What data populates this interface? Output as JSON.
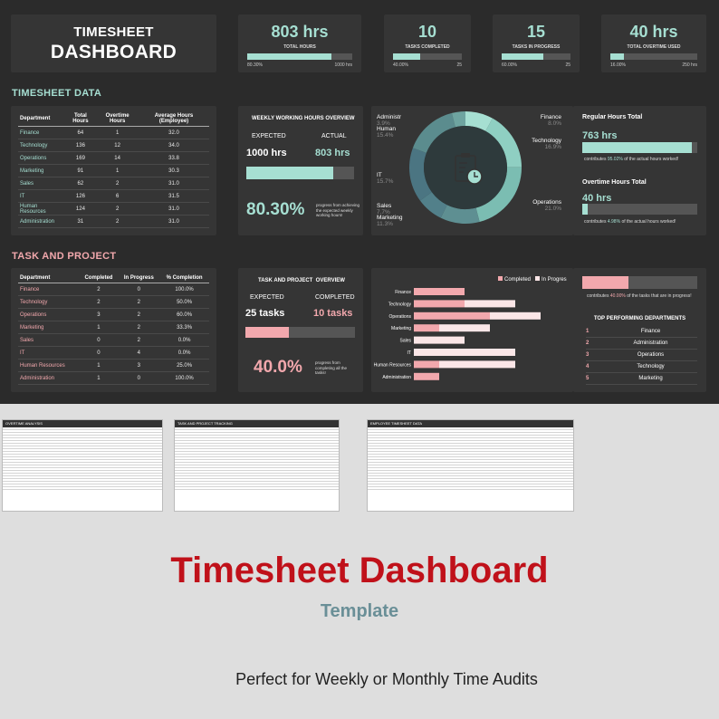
{
  "dashboard": {
    "title_line1": "TIMESHEET",
    "title_line2": "DASHBOARD",
    "kpis": [
      {
        "value": "803 hrs",
        "label": "TOTAL HOURS",
        "left": "80.30%",
        "right": "1000 hrs",
        "fill": 0.803
      },
      {
        "value": "10",
        "label": "TASKS COMPLETED",
        "left": "40.00%",
        "right": "25",
        "fill": 0.4
      },
      {
        "value": "15",
        "label": "TASKS IN PROGRESS",
        "left": "60.00%",
        "right": "25",
        "fill": 0.6
      },
      {
        "value": "40 hrs",
        "label": "TOTAL OVERTIME USED",
        "left": "16.00%",
        "right": "250 hrs",
        "fill": 0.16
      }
    ],
    "timesheet_section": "TIMESHEET DATA",
    "timesheet_table": {
      "headers": [
        "Department",
        "Total Hours",
        "Overtime Hours",
        "Average Hours (Employee)"
      ],
      "rows": [
        [
          "Finance",
          "64",
          "1",
          "32.0"
        ],
        [
          "Technology",
          "136",
          "12",
          "34.0"
        ],
        [
          "Operations",
          "169",
          "14",
          "33.8"
        ],
        [
          "Marketing",
          "91",
          "1",
          "30.3"
        ],
        [
          "Sales",
          "62",
          "2",
          "31.0"
        ],
        [
          "IT",
          "126",
          "6",
          "31.5"
        ],
        [
          "Human Resources",
          "124",
          "2",
          "31.0"
        ],
        [
          "Administration",
          "31",
          "2",
          "31.0"
        ]
      ]
    },
    "weekly": {
      "title": "WEEKLY WORKING HOURS OVERVIEW",
      "expected_label": "EXPECTED",
      "actual_label": "ACTUAL",
      "expected_value": "1000 hrs",
      "actual_value": "803 hrs",
      "fill": 0.803,
      "percent": "80.30%",
      "percent_note": "progress from achieving the expected weekly working hours!"
    },
    "donut": {
      "labels_left": [
        {
          "name": "Administr",
          "pct": "3.9%"
        },
        {
          "name": "Human",
          "pct": "15.4%"
        },
        {
          "name": "IT",
          "pct": "15.7%"
        },
        {
          "name": "Sales",
          "pct": "7.7%"
        },
        {
          "name": "Marketing",
          "pct": "11.3%"
        }
      ],
      "labels_right": [
        {
          "name": "Finance",
          "pct": "8.0%"
        },
        {
          "name": "Technology",
          "pct": "16.9%"
        },
        {
          "name": "Operations",
          "pct": "21.0%"
        }
      ],
      "segments": [
        {
          "name": "Finance",
          "value": 8.0,
          "color": "#a6dfd2"
        },
        {
          "name": "Technology",
          "value": 16.9,
          "color": "#8fcfc2"
        },
        {
          "name": "Operations",
          "value": 21.0,
          "color": "#7bbdb2"
        },
        {
          "name": "Marketing",
          "value": 11.3,
          "color": "#5e8f92"
        },
        {
          "name": "Sales",
          "value": 7.7,
          "color": "#52808a"
        },
        {
          "name": "IT",
          "value": 15.7,
          "color": "#4b7582"
        },
        {
          "name": "Human",
          "value": 15.4,
          "color": "#5b8c8e"
        },
        {
          "name": "Administr",
          "value": 3.9,
          "color": "#6ea4a0"
        }
      ]
    },
    "regular": {
      "title": "Regular Hours Total",
      "value": "763 hrs",
      "fill": 0.9502,
      "note_pre": "contributes",
      "note_pct": "95.02%",
      "note_post": "of the actual hours worked!"
    },
    "overtime": {
      "title": "Overtime Hours Total",
      "value": "40 hrs",
      "fill": 0.0498,
      "note_pre": "contributes",
      "note_pct": "4.98%",
      "note_post": "of the actual hours worked!"
    },
    "task_section": "TASK AND PROJECT",
    "task_table": {
      "headers": [
        "Department",
        "Completed",
        "In Progress",
        "% Completion"
      ],
      "rows": [
        [
          "Finance",
          "2",
          "0",
          "100.0%"
        ],
        [
          "Technology",
          "2",
          "2",
          "50.0%"
        ],
        [
          "Operations",
          "3",
          "2",
          "60.0%"
        ],
        [
          "Marketing",
          "1",
          "2",
          "33.3%"
        ],
        [
          "Sales",
          "0",
          "2",
          "0.0%"
        ],
        [
          "IT",
          "0",
          "4",
          "0.0%"
        ],
        [
          "Human Resources",
          "1",
          "3",
          "25.0%"
        ],
        [
          "Administration",
          "1",
          "0",
          "100.0%"
        ]
      ]
    },
    "task_overview": {
      "title": "TASK AND PROJECT  OVERVIEW",
      "expected_label": "EXPECTED",
      "completed_label": "COMPLETED",
      "expected_value": "25 tasks",
      "completed_value": "10 tasks",
      "fill": 0.4,
      "percent": "40.0%",
      "percent_note": "progress from completing all the tasks!"
    },
    "task_chart": {
      "legend_completed": "Completed",
      "legend_in_progress": "In Progres",
      "categories": [
        "Finance",
        "Technology",
        "Operations",
        "Marketing",
        "Sales",
        "IT",
        "Human Resources",
        "Administration"
      ],
      "completed": [
        2,
        2,
        3,
        1,
        0,
        0,
        1,
        1
      ],
      "in_progress": [
        0,
        2,
        2,
        2,
        2,
        4,
        3,
        0
      ],
      "max": 6,
      "color_completed": "#f2a8ad",
      "color_in_progress": "#fbe6e7"
    },
    "top": {
      "bar_fill": 0.4,
      "note_pre": "contributes",
      "note_pct": "40.00%",
      "note_post": "of the tasks that are in progress!",
      "title": "TOP PERFORMING DEPARTMENTS",
      "items": [
        {
          "rank": "1",
          "name": "Finance"
        },
        {
          "rank": "2",
          "name": "Administration"
        },
        {
          "rank": "3",
          "name": "Operations"
        },
        {
          "rank": "4",
          "name": "Technology"
        },
        {
          "rank": "5",
          "name": "Marketing"
        }
      ]
    }
  },
  "previews": [
    {
      "title": "OVERTIME ANALYSIS"
    },
    {
      "title": "TASK AND PROJECT TRACKING"
    },
    {
      "title": "EMPLOYEE TIMESHEET DATA"
    }
  ],
  "promo": {
    "title": "Timesheet Dashboard",
    "subtitle": "Template",
    "tagline": "Perfect for Weekly or Monthly Time Audits"
  },
  "colors": {
    "teal": "#a6dfd2",
    "pink": "#f2a8ad",
    "red": "#c0111a",
    "dark": "#2b2b2b"
  }
}
